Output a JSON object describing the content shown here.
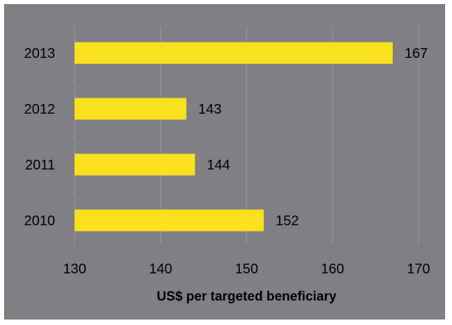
{
  "chart_data": {
    "type": "bar",
    "orientation": "horizontal",
    "categories": [
      "2013",
      "2012",
      "2011",
      "2010"
    ],
    "values": [
      167,
      143,
      144,
      152
    ],
    "title": "",
    "xlabel": "US$ per targeted beneficiary",
    "ylabel": "",
    "xlim": [
      130,
      170
    ],
    "x_ticks": [
      130,
      140,
      150,
      160,
      170
    ],
    "grid": "vertical",
    "legend": "none",
    "bar_color": "#f9e11e",
    "background_color": "#807f83",
    "gridline_color": "#9a999d"
  }
}
